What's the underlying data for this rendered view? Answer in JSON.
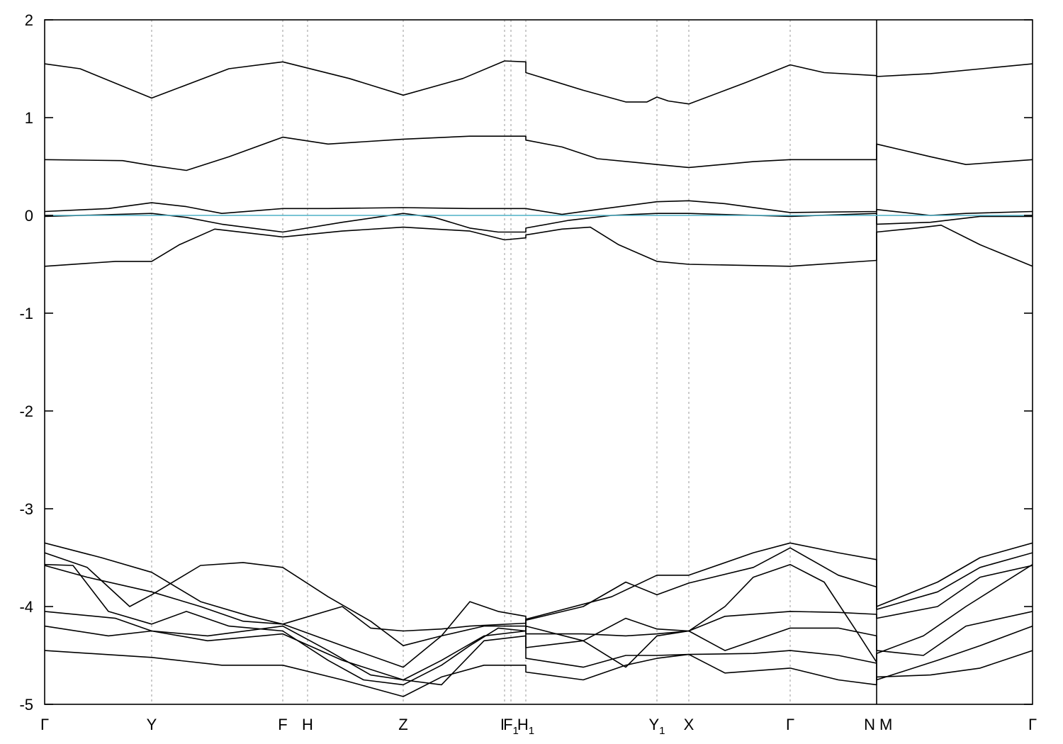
{
  "chart_data": {
    "type": "line",
    "title": "",
    "xlabel": "",
    "ylabel": "",
    "ylim": [
      -5,
      2
    ],
    "y_ticks": [
      2,
      1,
      0,
      -1,
      -2,
      -3,
      -4,
      -5
    ],
    "xlim": [
      0,
      1394
    ],
    "grid": "vertical dashed lines at k-points",
    "k_points": [
      {
        "label": "Γ",
        "sub": "",
        "x": 0
      },
      {
        "label": "Y",
        "sub": "",
        "x": 151
      },
      {
        "label": "F",
        "sub": "",
        "x": 336
      },
      {
        "label": "H",
        "sub": "",
        "x": 371
      },
      {
        "label": "Z",
        "sub": "",
        "x": 506
      },
      {
        "label": "I",
        "sub": "",
        "x": 649
      },
      {
        "label": "F",
        "sub": "1",
        "x": 658
      },
      {
        "label": "H",
        "sub": "1",
        "x": 679
      },
      {
        "label": "Y",
        "sub": "1",
        "x": 864
      },
      {
        "label": "X",
        "sub": "",
        "x": 909
      },
      {
        "label": "Γ",
        "sub": "",
        "x": 1052
      },
      {
        "label": "N",
        "sub": "",
        "x": 1174
      },
      {
        "label": "M",
        "sub": "",
        "x": 1174
      },
      {
        "label": "Γ",
        "sub": "",
        "x": 1394
      }
    ],
    "fermi_level": 0,
    "series": [
      {
        "values": [
          [
            0,
            1.55
          ],
          [
            50,
            1.5
          ],
          [
            151,
            1.2
          ],
          [
            260,
            1.5
          ],
          [
            336,
            1.57
          ],
          [
            430,
            1.4
          ],
          [
            506,
            1.23
          ],
          [
            590,
            1.4
          ],
          [
            649,
            1.58
          ],
          [
            679,
            1.57
          ],
          [
            679,
            1.46
          ],
          [
            760,
            1.28
          ],
          [
            820,
            1.16
          ],
          [
            850,
            1.16
          ],
          [
            864,
            1.21
          ],
          [
            880,
            1.17
          ],
          [
            909,
            1.14
          ],
          [
            990,
            1.36
          ],
          [
            1052,
            1.54
          ],
          [
            1100,
            1.46
          ],
          [
            1174,
            1.43
          ],
          [
            1174,
            1.42
          ],
          [
            1250,
            1.45
          ],
          [
            1394,
            1.55
          ]
        ]
      },
      {
        "values": [
          [
            0,
            0.57
          ],
          [
            110,
            0.56
          ],
          [
            151,
            0.51
          ],
          [
            200,
            0.46
          ],
          [
            260,
            0.6
          ],
          [
            336,
            0.8
          ],
          [
            400,
            0.73
          ],
          [
            506,
            0.78
          ],
          [
            600,
            0.81
          ],
          [
            679,
            0.81
          ],
          [
            679,
            0.77
          ],
          [
            730,
            0.7
          ],
          [
            780,
            0.58
          ],
          [
            864,
            0.52
          ],
          [
            909,
            0.49
          ],
          [
            1000,
            0.55
          ],
          [
            1052,
            0.57
          ],
          [
            1174,
            0.57
          ],
          [
            1174,
            0.73
          ],
          [
            1250,
            0.6
          ],
          [
            1300,
            0.52
          ],
          [
            1394,
            0.57
          ]
        ]
      },
      {
        "values": [
          [
            0,
            0.04
          ],
          [
            90,
            0.07
          ],
          [
            151,
            0.13
          ],
          [
            200,
            0.09
          ],
          [
            250,
            0.02
          ],
          [
            336,
            0.07
          ],
          [
            400,
            0.07
          ],
          [
            506,
            0.08
          ],
          [
            600,
            0.07
          ],
          [
            679,
            0.07
          ],
          [
            730,
            0.01
          ],
          [
            780,
            0.06
          ],
          [
            864,
            0.14
          ],
          [
            909,
            0.15
          ],
          [
            960,
            0.12
          ],
          [
            1052,
            0.03
          ],
          [
            1174,
            0.04
          ],
          [
            1174,
            0.06
          ],
          [
            1250,
            0.0
          ],
          [
            1300,
            0.02
          ],
          [
            1394,
            0.04
          ]
        ]
      },
      {
        "values": [
          [
            0,
            -0.01
          ],
          [
            151,
            0.02
          ],
          [
            200,
            -0.02
          ],
          [
            250,
            -0.09
          ],
          [
            336,
            -0.17
          ],
          [
            420,
            -0.07
          ],
          [
            506,
            0.02
          ],
          [
            550,
            -0.02
          ],
          [
            600,
            -0.13
          ],
          [
            640,
            -0.17
          ],
          [
            679,
            -0.17
          ],
          [
            679,
            -0.13
          ],
          [
            740,
            -0.05
          ],
          [
            800,
            0.0
          ],
          [
            864,
            0.02
          ],
          [
            909,
            0.02
          ],
          [
            1052,
            -0.01
          ],
          [
            1174,
            0.02
          ],
          [
            1174,
            -0.09
          ],
          [
            1250,
            -0.07
          ],
          [
            1320,
            -0.01
          ],
          [
            1394,
            -0.01
          ]
        ]
      },
      {
        "values": [
          [
            0,
            -0.52
          ],
          [
            100,
            -0.47
          ],
          [
            151,
            -0.47
          ],
          [
            190,
            -0.3
          ],
          [
            240,
            -0.14
          ],
          [
            336,
            -0.22
          ],
          [
            420,
            -0.16
          ],
          [
            506,
            -0.12
          ],
          [
            600,
            -0.16
          ],
          [
            649,
            -0.25
          ],
          [
            679,
            -0.23
          ],
          [
            679,
            -0.2
          ],
          [
            730,
            -0.14
          ],
          [
            770,
            -0.12
          ],
          [
            810,
            -0.3
          ],
          [
            864,
            -0.47
          ],
          [
            909,
            -0.5
          ],
          [
            1052,
            -0.52
          ],
          [
            1174,
            -0.46
          ],
          [
            1174,
            -0.17
          ],
          [
            1230,
            -0.13
          ],
          [
            1265,
            -0.1
          ],
          [
            1320,
            -0.3
          ],
          [
            1394,
            -0.52
          ]
        ]
      },
      {
        "values": [
          [
            0,
            -3.35
          ],
          [
            80,
            -3.5
          ],
          [
            151,
            -3.65
          ],
          [
            220,
            -3.95
          ],
          [
            290,
            -4.1
          ],
          [
            336,
            -4.18
          ],
          [
            420,
            -4.0
          ],
          [
            460,
            -4.22
          ],
          [
            506,
            -4.25
          ],
          [
            560,
            -4.23
          ],
          [
            600,
            -4.2
          ],
          [
            679,
            -4.17
          ],
          [
            679,
            -4.13
          ],
          [
            800,
            -3.9
          ],
          [
            864,
            -3.68
          ],
          [
            909,
            -3.68
          ],
          [
            1000,
            -3.45
          ],
          [
            1052,
            -3.35
          ],
          [
            1120,
            -3.45
          ],
          [
            1174,
            -3.52
          ],
          [
            1174,
            -4.0
          ],
          [
            1260,
            -3.75
          ],
          [
            1320,
            -3.5
          ],
          [
            1394,
            -3.35
          ]
        ]
      },
      {
        "values": [
          [
            0,
            -3.45
          ],
          [
            60,
            -3.6
          ],
          [
            120,
            -4.0
          ],
          [
            151,
            -3.88
          ],
          [
            220,
            -3.58
          ],
          [
            280,
            -3.55
          ],
          [
            336,
            -3.6
          ],
          [
            400,
            -3.9
          ],
          [
            460,
            -4.15
          ],
          [
            506,
            -4.4
          ],
          [
            560,
            -4.3
          ],
          [
            620,
            -4.2
          ],
          [
            679,
            -4.2
          ],
          [
            679,
            -4.14
          ],
          [
            760,
            -4.0
          ],
          [
            820,
            -3.75
          ],
          [
            864,
            -3.88
          ],
          [
            909,
            -3.76
          ],
          [
            1000,
            -3.6
          ],
          [
            1052,
            -3.4
          ],
          [
            1120,
            -3.68
          ],
          [
            1174,
            -3.8
          ],
          [
            1174,
            -4.03
          ],
          [
            1260,
            -3.85
          ],
          [
            1320,
            -3.6
          ],
          [
            1394,
            -3.45
          ]
        ]
      },
      {
        "values": [
          [
            0,
            -3.57
          ],
          [
            40,
            -3.58
          ],
          [
            90,
            -4.05
          ],
          [
            151,
            -4.18
          ],
          [
            200,
            -4.05
          ],
          [
            260,
            -4.2
          ],
          [
            336,
            -4.25
          ],
          [
            400,
            -4.55
          ],
          [
            450,
            -4.75
          ],
          [
            506,
            -4.8
          ],
          [
            560,
            -4.6
          ],
          [
            600,
            -4.4
          ],
          [
            640,
            -4.22
          ],
          [
            679,
            -4.25
          ],
          [
            679,
            -4.28
          ],
          [
            760,
            -4.28
          ],
          [
            820,
            -4.3
          ],
          [
            864,
            -4.28
          ],
          [
            909,
            -4.25
          ],
          [
            960,
            -4.1
          ],
          [
            1052,
            -4.05
          ],
          [
            1120,
            -4.06
          ],
          [
            1174,
            -4.08
          ],
          [
            1174,
            -4.12
          ],
          [
            1260,
            -4.0
          ],
          [
            1320,
            -3.7
          ],
          [
            1394,
            -3.58
          ]
        ]
      },
      {
        "values": [
          [
            0,
            -3.58
          ],
          [
            60,
            -3.7
          ],
          [
            151,
            -3.85
          ],
          [
            220,
            -4.0
          ],
          [
            280,
            -4.15
          ],
          [
            336,
            -4.18
          ],
          [
            420,
            -4.4
          ],
          [
            506,
            -4.62
          ],
          [
            560,
            -4.3
          ],
          [
            600,
            -3.95
          ],
          [
            640,
            -4.05
          ],
          [
            679,
            -4.1
          ],
          [
            679,
            -4.42
          ],
          [
            760,
            -4.35
          ],
          [
            820,
            -4.12
          ],
          [
            864,
            -4.23
          ],
          [
            909,
            -4.25
          ],
          [
            960,
            -4.0
          ],
          [
            1000,
            -3.7
          ],
          [
            1052,
            -3.57
          ],
          [
            1100,
            -3.75
          ],
          [
            1150,
            -4.3
          ],
          [
            1174,
            -4.57
          ],
          [
            1174,
            -4.48
          ],
          [
            1240,
            -4.3
          ],
          [
            1300,
            -4.0
          ],
          [
            1394,
            -3.57
          ]
        ]
      },
      {
        "values": [
          [
            0,
            -4.05
          ],
          [
            100,
            -4.12
          ],
          [
            151,
            -4.25
          ],
          [
            230,
            -4.3
          ],
          [
            336,
            -4.2
          ],
          [
            400,
            -4.45
          ],
          [
            460,
            -4.7
          ],
          [
            506,
            -4.75
          ],
          [
            560,
            -4.55
          ],
          [
            620,
            -4.3
          ],
          [
            679,
            -4.25
          ],
          [
            679,
            -4.2
          ],
          [
            760,
            -4.35
          ],
          [
            820,
            -4.62
          ],
          [
            864,
            -4.3
          ],
          [
            909,
            -4.25
          ],
          [
            960,
            -4.45
          ],
          [
            1052,
            -4.22
          ],
          [
            1120,
            -4.22
          ],
          [
            1174,
            -4.3
          ],
          [
            1174,
            -4.45
          ],
          [
            1240,
            -4.5
          ],
          [
            1300,
            -4.2
          ],
          [
            1394,
            -4.05
          ]
        ]
      },
      {
        "values": [
          [
            0,
            -4.2
          ],
          [
            90,
            -4.3
          ],
          [
            151,
            -4.25
          ],
          [
            230,
            -4.35
          ],
          [
            336,
            -4.28
          ],
          [
            420,
            -4.55
          ],
          [
            506,
            -4.75
          ],
          [
            560,
            -4.8
          ],
          [
            620,
            -4.35
          ],
          [
            679,
            -4.3
          ],
          [
            679,
            -4.53
          ],
          [
            760,
            -4.62
          ],
          [
            820,
            -4.5
          ],
          [
            864,
            -4.5
          ],
          [
            909,
            -4.49
          ],
          [
            1000,
            -4.48
          ],
          [
            1052,
            -4.45
          ],
          [
            1120,
            -4.5
          ],
          [
            1174,
            -4.58
          ],
          [
            1174,
            -4.75
          ],
          [
            1260,
            -4.55
          ],
          [
            1320,
            -4.4
          ],
          [
            1394,
            -4.2
          ]
        ]
      },
      {
        "values": [
          [
            0,
            -4.45
          ],
          [
            151,
            -4.52
          ],
          [
            250,
            -4.6
          ],
          [
            336,
            -4.6
          ],
          [
            420,
            -4.75
          ],
          [
            506,
            -4.92
          ],
          [
            560,
            -4.72
          ],
          [
            620,
            -4.6
          ],
          [
            679,
            -4.6
          ],
          [
            679,
            -4.67
          ],
          [
            760,
            -4.75
          ],
          [
            820,
            -4.6
          ],
          [
            864,
            -4.53
          ],
          [
            909,
            -4.49
          ],
          [
            960,
            -4.68
          ],
          [
            1052,
            -4.63
          ],
          [
            1120,
            -4.75
          ],
          [
            1174,
            -4.8
          ],
          [
            1174,
            -4.72
          ],
          [
            1250,
            -4.7
          ],
          [
            1320,
            -4.63
          ],
          [
            1394,
            -4.45
          ]
        ]
      }
    ]
  }
}
